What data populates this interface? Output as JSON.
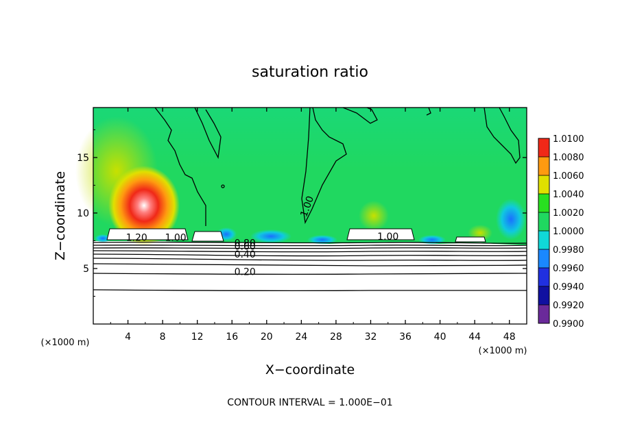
{
  "chart_data": {
    "type": "heatmap",
    "title": "saturation ratio",
    "xlabel": "X−coordinate",
    "ylabel": "Z−coordinate",
    "x_unit": "(×1000 m)",
    "z_unit": "(×1000 m)",
    "xlim": [
      0,
      50
    ],
    "ylim": [
      0,
      19.5
    ],
    "xticks": [
      4,
      8,
      12,
      16,
      20,
      24,
      28,
      32,
      36,
      40,
      44,
      48
    ],
    "yticks": [
      5,
      10,
      15
    ],
    "colorbar": {
      "ticks": [
        "0.9900",
        "0.9920",
        "0.9940",
        "0.9960",
        "0.9980",
        "1.0000",
        "1.0020",
        "1.0040",
        "1.0060",
        "1.0080",
        "1.0100"
      ],
      "colors": [
        "#6a2a9a",
        "#1010a0",
        "#2030e0",
        "#1a88ff",
        "#10d8d8",
        "#20d860",
        "#28e020",
        "#e0e000",
        "#ff9a10",
        "#f02818",
        "#f4a0a0"
      ]
    },
    "contour_labels": [
      {
        "text": "1.20",
        "x": 5.0,
        "z": 7.5
      },
      {
        "text": "1.00",
        "x": 9.5,
        "z": 7.5
      },
      {
        "text": "1.00",
        "x": 25.0,
        "z": 10.5
      },
      {
        "text": "1.00",
        "x": 34.0,
        "z": 7.6
      },
      {
        "text": "0.80",
        "x": 17.5,
        "z": 7.0
      },
      {
        "text": "0.60",
        "x": 17.5,
        "z": 6.7
      },
      {
        "text": "0.40",
        "x": 17.5,
        "z": 6.0
      },
      {
        "text": "0.20",
        "x": 17.5,
        "z": 4.4
      }
    ],
    "contour_interval": "CONTOUR INTERVAL = 1.000E−01",
    "grid": false,
    "legend": "colorbar-right"
  }
}
